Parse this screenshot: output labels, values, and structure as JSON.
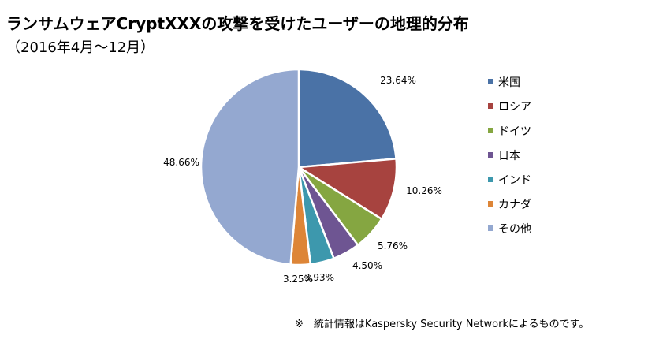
{
  "title": "ランサムウェアCryptXXXの攻撃を受けたユーザーの地理的分布",
  "subtitle": "（2016年4月～12月）",
  "chart_data": {
    "type": "pie",
    "categories": [
      "米国",
      "ロシア",
      "ドイツ",
      "日本",
      "インド",
      "カナダ",
      "その他"
    ],
    "values": [
      23.64,
      10.26,
      5.76,
      4.5,
      3.93,
      3.25,
      48.66
    ],
    "data_labels": [
      "23.64%",
      "10.26%",
      "5.76%",
      "4.50%",
      "3.93%",
      "3.25%",
      "48.66%"
    ],
    "colors": [
      "#4a72a6",
      "#a7433f",
      "#85a641",
      "#6e5592",
      "#3d98ad",
      "#dd8537",
      "#94a8d0"
    ],
    "start": "12 o'clock, clockwise",
    "legend": "right"
  },
  "footnote": "※　統計情報はKaspersky Security Networkによるものです。"
}
